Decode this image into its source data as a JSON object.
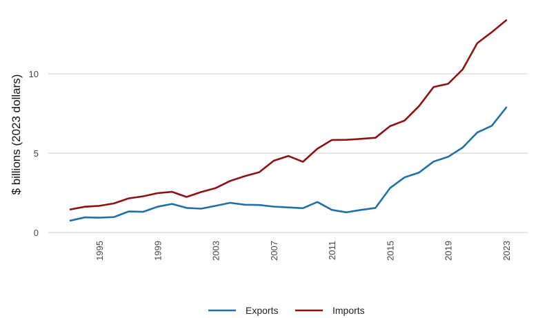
{
  "chart_data": {
    "type": "line",
    "title": "",
    "xlabel": "",
    "ylabel": "$ billions (2023 dollars)",
    "ylim": [
      0,
      13.5
    ],
    "yticks": [
      0,
      5,
      10
    ],
    "ytick_labels": [
      "0",
      "5",
      "10"
    ],
    "xlim": [
      1993,
      2023
    ],
    "xticks": [
      1995,
      1999,
      2003,
      2007,
      2011,
      2015,
      2019,
      2023
    ],
    "xtick_labels": [
      "1995",
      "1999",
      "2003",
      "2007",
      "2011",
      "2015",
      "2019",
      "2023"
    ],
    "grid": "horizontal",
    "legend_position": "bottom",
    "x": [
      1993,
      1994,
      1995,
      1996,
      1997,
      1998,
      1999,
      2000,
      2001,
      2002,
      2003,
      2004,
      2005,
      2006,
      2007,
      2008,
      2009,
      2010,
      2011,
      2012,
      2013,
      2014,
      2015,
      2016,
      2017,
      2018,
      2019,
      2020,
      2021,
      2022,
      2023
    ],
    "series": [
      {
        "name": "Exports",
        "color": "#1f6fa8",
        "values": [
          0.75,
          0.95,
          0.93,
          0.97,
          1.32,
          1.3,
          1.62,
          1.8,
          1.55,
          1.5,
          1.68,
          1.87,
          1.75,
          1.73,
          1.63,
          1.58,
          1.53,
          1.92,
          1.42,
          1.27,
          1.42,
          1.55,
          2.8,
          3.47,
          3.78,
          4.47,
          4.77,
          5.35,
          6.3,
          6.72,
          7.88
        ]
      },
      {
        "name": "Imports",
        "color": "#8e1010",
        "values": [
          1.45,
          1.62,
          1.68,
          1.83,
          2.15,
          2.28,
          2.48,
          2.56,
          2.24,
          2.55,
          2.8,
          3.25,
          3.55,
          3.8,
          4.52,
          4.82,
          4.45,
          5.28,
          5.83,
          5.84,
          5.9,
          5.97,
          6.7,
          7.05,
          7.97,
          9.17,
          9.37,
          10.28,
          11.93,
          12.62,
          13.38
        ]
      }
    ]
  }
}
